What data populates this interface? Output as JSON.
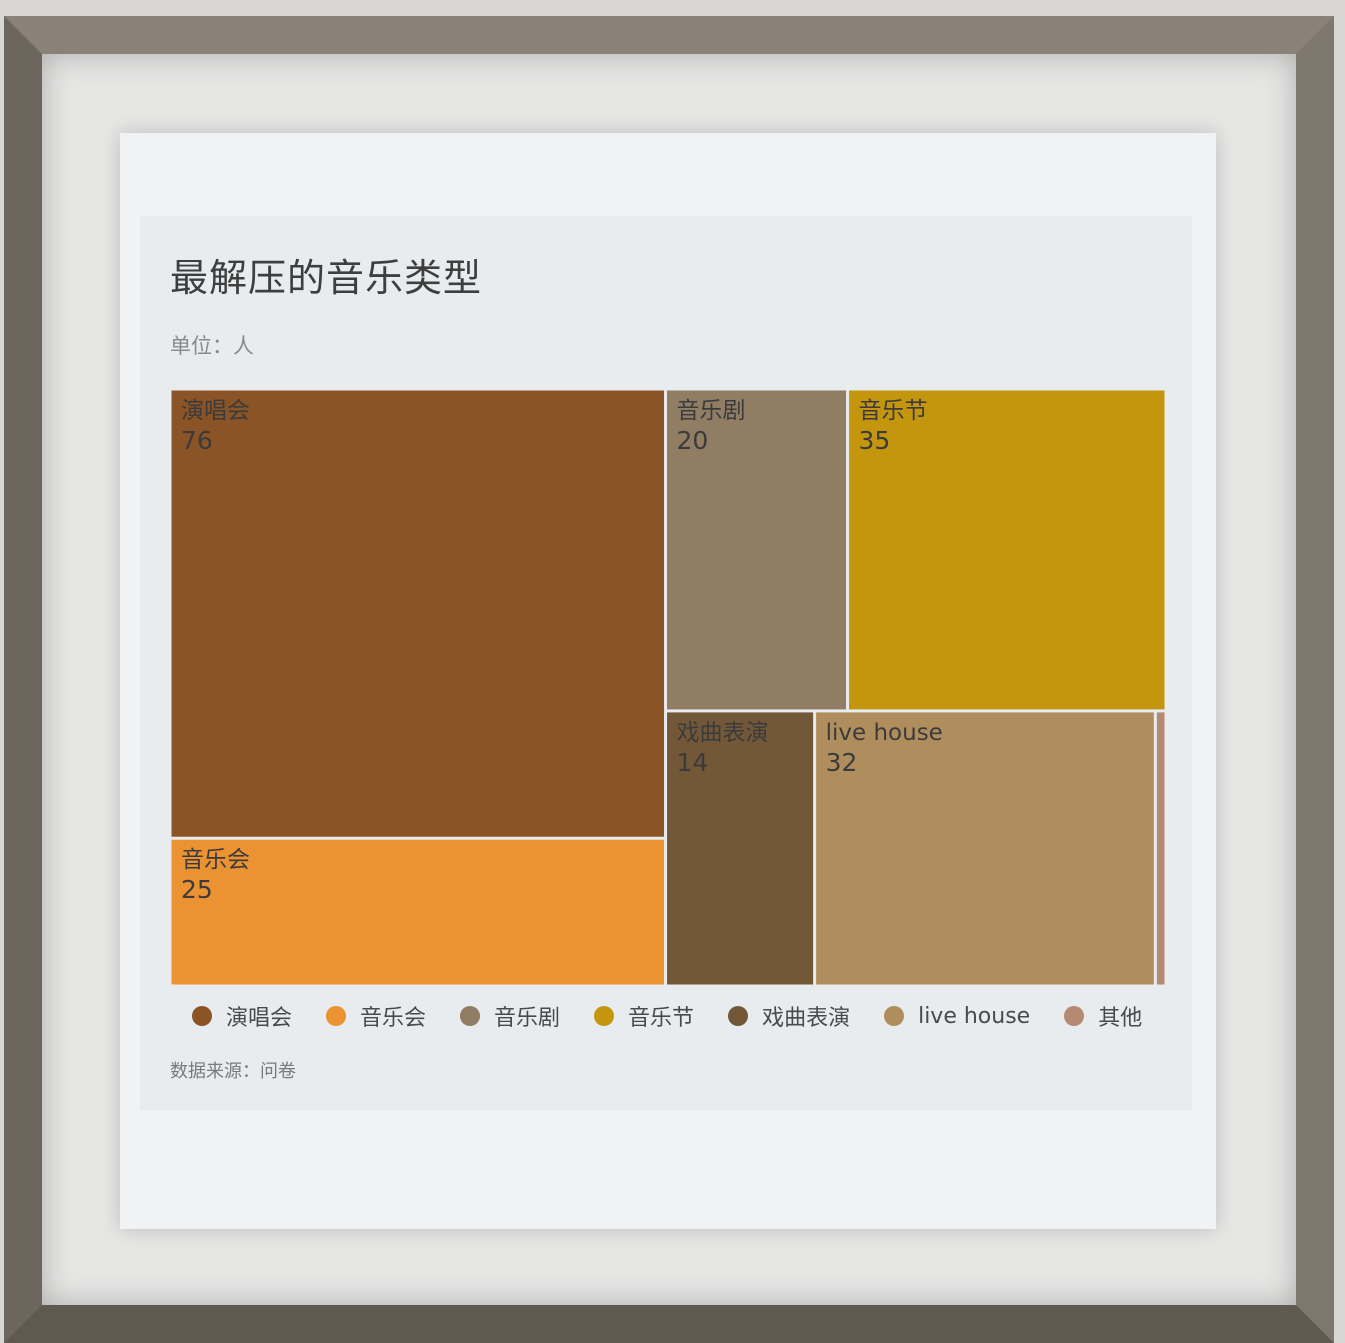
{
  "chart_data": {
    "type": "treemap",
    "title": "最解压的音乐类型",
    "subtitle": "单位：人",
    "source": "数据来源：问卷",
    "categories": [
      "演唱会",
      "音乐会",
      "音乐剧",
      "音乐节",
      "戏曲表演",
      "live house",
      "其他"
    ],
    "values": [
      76,
      25,
      20,
      35,
      14,
      32,
      1
    ],
    "colors": [
      "#8a5427",
      "#eb9233",
      "#917d64",
      "#c4960e",
      "#735838",
      "#b08d5d",
      "#b58a73"
    ],
    "legend_position": "bottom"
  }
}
